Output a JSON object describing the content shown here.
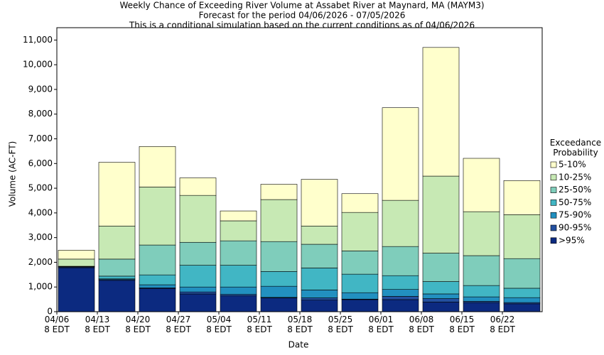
{
  "chart_data": {
    "type": "stacked_bar",
    "title": "Weekly Chance of Exceeding River Volume at Assabet River at Maynard, MA (MAYM3)",
    "subtitle": "Forecast for the period 04/06/2026 - 07/05/2026",
    "note": "This is a conditional simulation based on the current conditions as of 04/06/2026",
    "x_label": "Date",
    "y_label": "Volume (AC-FT)",
    "legend_title": "Exceedance Probability",
    "legend_position": "right",
    "categories": [
      "04/06\n8 EDT",
      "04/13\n8 EDT",
      "04/20\n8 EDT",
      "04/27\n8 EDT",
      "05/04\n8 EDT",
      "05/11\n8 EDT",
      "05/18\n8 EDT",
      "05/25\n8 EDT",
      "06/01\n8 EDT",
      "06/08\n8 EDT",
      "06/15\n8 EDT",
      "06/22\n8 EDT"
    ],
    "series": [
      {
        "name": ">95%",
        "color": "#0c2a80",
        "values": [
          1780,
          1270,
          940,
          720,
          640,
          560,
          470,
          490,
          490,
          390,
          370,
          320
        ]
      },
      {
        "name": "90-95%",
        "color": "#2350a0",
        "values": [
          30,
          30,
          30,
          80,
          60,
          20,
          90,
          20,
          130,
          140,
          50,
          50
        ]
      },
      {
        "name": "75-90%",
        "color": "#2290c0",
        "values": [
          10,
          30,
          120,
          200,
          300,
          450,
          320,
          260,
          280,
          190,
          180,
          200
        ]
      },
      {
        "name": "50-75%",
        "color": "#41b6c4",
        "values": [
          10,
          110,
          400,
          880,
          880,
          600,
          890,
          750,
          560,
          500,
          460,
          380
        ]
      },
      {
        "name": "25-50%",
        "color": "#7fcdbb",
        "values": [
          10,
          690,
          1210,
          930,
          990,
          1210,
          960,
          940,
          1180,
          1150,
          1210,
          1200
        ]
      },
      {
        "name": "10-25%",
        "color": "#c7e9b4",
        "values": [
          290,
          1340,
          2350,
          1900,
          810,
          1700,
          740,
          1560,
          1870,
          3120,
          1780,
          1780
        ]
      },
      {
        "name": "5-10%",
        "color": "#ffffcc",
        "values": [
          360,
          2580,
          1640,
          710,
          400,
          620,
          1890,
          760,
          3750,
          5210,
          2160,
          1380
        ]
      }
    ],
    "ylim": [
      0,
      11500
    ],
    "yticks": [
      0,
      {
        "value": 1000,
        "label": "1,000"
      },
      {
        "value": 2000,
        "label": "2,000"
      },
      {
        "value": 3000,
        "label": "3,000"
      },
      {
        "value": 4000,
        "label": "4,000"
      },
      {
        "value": 5000,
        "label": "5,000"
      },
      {
        "value": 6000,
        "label": "6,000"
      },
      {
        "value": 7000,
        "label": "7,000"
      },
      {
        "value": 8000,
        "label": "8,000"
      },
      {
        "value": 9000,
        "label": "9,000"
      },
      {
        "value": 10000,
        "label": "10,000"
      },
      {
        "value": 11000,
        "label": "11,000"
      }
    ],
    "grid": false
  }
}
